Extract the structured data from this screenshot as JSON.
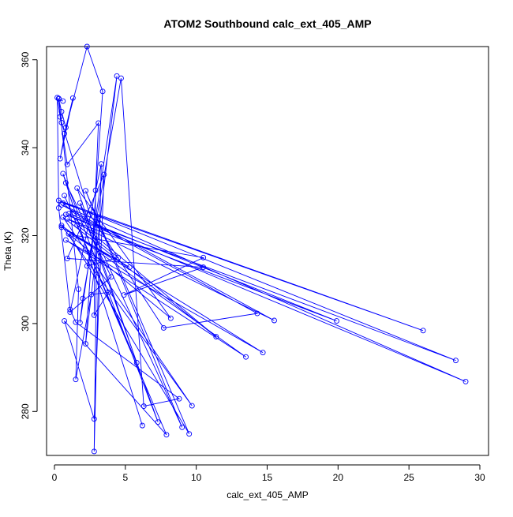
{
  "chart_data": {
    "type": "line",
    "title": "ATOM2 Southbound calc_ext_405_AMP",
    "xlabel": "calc_ext_405_AMP",
    "ylabel": "Theta (K)",
    "xlim": [
      0,
      30
    ],
    "ylim": [
      270,
      363
    ],
    "x_ticks": [
      0,
      5,
      10,
      15,
      20,
      25,
      30
    ],
    "y_ticks": [
      280,
      300,
      320,
      340,
      360
    ],
    "grid": false,
    "legend": "none",
    "marker": "open-circle",
    "colors": {
      "series": "#0000ff",
      "axis": "#000000",
      "background": "#ffffff"
    },
    "series": [
      {
        "x": [
          0.6,
          0.3,
          0.5,
          0.8,
          0.4,
          1.3,
          0.7,
          2.3,
          3.4,
          2.2,
          4.4,
          1.8,
          2.0,
          4.7,
          6.3,
          8.8,
          1.5,
          1.1,
          0.3,
          0.2,
          0.4,
          0.9,
          3.1,
          2.9,
          2.8,
          3.8,
          2.6,
          1.5,
          1.7,
          0.3,
          0.5,
          2.5,
          7.7,
          14.3,
          1.4,
          0.6,
          26.0,
          0.3,
          28.3,
          0.8,
          29.0,
          0.5,
          15.5,
          0.9,
          19.9,
          1.0,
          11.4,
          0.6,
          9.7,
          0.5,
          13.5,
          0.8,
          14.7,
          0.5,
          5.3,
          1.2,
          10.5,
          4.9,
          10.5,
          0.9,
          3.5,
          2.8,
          0.7,
          7.9,
          0.7,
          5.8,
          1.6,
          8.2,
          1.0,
          9.5,
          2.2,
          9.0,
          1.8,
          7.3,
          0.6,
          6.2,
          0.8,
          4.0,
          1.1,
          3.3,
          2.8,
          3.0,
          2.3,
          4.5,
          1.6
        ],
        "y": [
          350.6,
          351.1,
          348.2,
          344.6,
          337.5,
          351.3,
          343.2,
          363.0,
          352.8,
          295.4,
          356.3,
          300.2,
          305.7,
          355.8,
          281.2,
          282.9,
          300.3,
          303.2,
          326.3,
          351.4,
          347.0,
          336.2,
          345.6,
          330.3,
          301.9,
          307.1,
          306.6,
          287.3,
          307.8,
          351.2,
          345.7,
          324.8,
          299.0,
          302.3,
          325.1,
          327.4,
          298.4,
          328.0,
          291.6,
          324.8,
          286.8,
          327.0,
          300.7,
          323.8,
          300.6,
          325.0,
          297.0,
          324.2,
          281.3,
          322.3,
          292.4,
          319.0,
          293.4,
          321.9,
          312.8,
          320.2,
          315.0,
          306.5,
          312.8,
          314.8,
          333.9,
          278.3,
          300.6,
          274.7,
          329.1,
          291.1,
          330.8,
          301.2,
          320.4,
          274.9,
          330.2,
          276.4,
          327.4,
          277.6,
          334.1,
          276.8,
          332.0,
          310.6,
          302.6,
          336.3,
          270.9,
          323.6,
          313.1,
          315.0,
          322.4
        ]
      }
    ]
  }
}
